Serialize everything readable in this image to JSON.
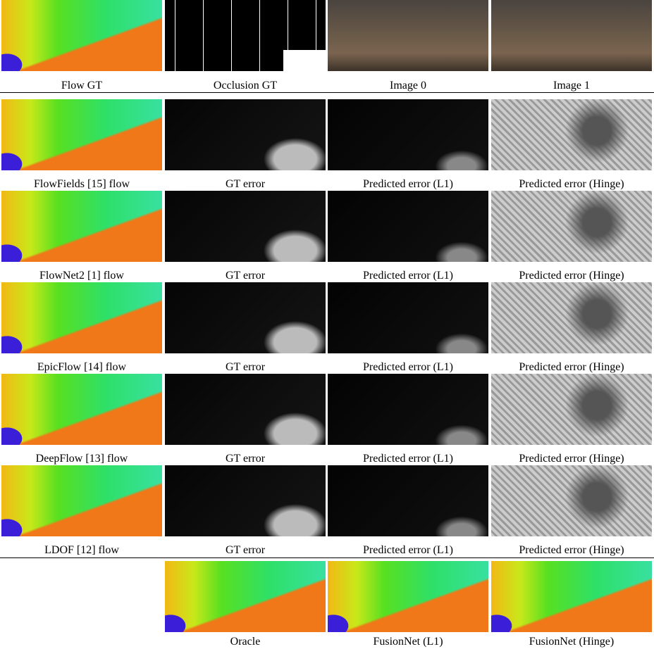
{
  "figure": {
    "rows": [
      {
        "captions": [
          "Flow GT",
          "Occlusion GT",
          "Image 0",
          "Image 1"
        ]
      },
      {
        "captions": [
          "FlowFields [15] flow",
          "GT error",
          "Predicted error (L1)",
          "Predicted error (Hinge)"
        ]
      },
      {
        "captions": [
          "FlowNet2 [1] flow",
          "GT error",
          "Predicted error (L1)",
          "Predicted error (Hinge)"
        ]
      },
      {
        "captions": [
          "EpicFlow [14] flow",
          "GT error",
          "Predicted error (L1)",
          "Predicted error (Hinge)"
        ]
      },
      {
        "captions": [
          "DeepFlow [13] flow",
          "GT error",
          "Predicted error (L1)",
          "Predicted error (Hinge)"
        ]
      },
      {
        "captions": [
          "LDOF [12] flow",
          "GT error",
          "Predicted error (L1)",
          "Predicted error (Hinge)"
        ]
      },
      {
        "captions": [
          "Oracle",
          "FusionNet (L1)",
          "FusionNet (Hinge)"
        ]
      }
    ]
  }
}
